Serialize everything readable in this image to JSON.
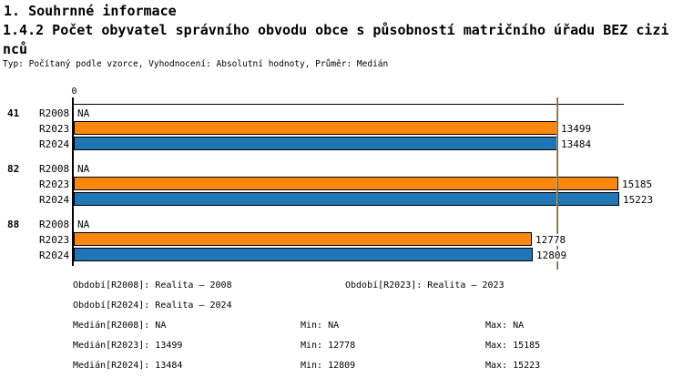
{
  "header": {
    "title": "1. Souhrnné informace",
    "subtitle": "1.4.2 Počet obyvatel správního obvodu obce s působností matričního úřadu BEZ cizinců",
    "meta": "Typ: Počítaný podle vzorce, Vyhodnocení: Absolutní hodnoty, Průměr: Medián"
  },
  "chart_data": {
    "type": "bar",
    "orientation": "horizontal",
    "title": "1.4.2 Počet obyvatel správního obvodu obce s působností matričního úřadu BEZ cizinců",
    "x_origin_label": "0",
    "value_range": [
      0,
      15223
    ],
    "grid": false,
    "na_label": "NA",
    "categories": [
      "41",
      "82",
      "88"
    ],
    "series": [
      {
        "name": "R2008",
        "color": null,
        "values": [
          null,
          null,
          null
        ]
      },
      {
        "name": "R2023",
        "color": "#FC870E",
        "values": [
          13499,
          15185,
          12778
        ]
      },
      {
        "name": "R2024",
        "color": "#1F76B4",
        "values": [
          13484,
          15223,
          12809
        ]
      }
    ],
    "median_lines": [
      {
        "series": "R2023",
        "value": 13499,
        "color": "#FC870E"
      },
      {
        "series": "R2024",
        "value": 13484,
        "color": "#1F76B4"
      }
    ]
  },
  "legend": {
    "items": [
      "Období[R2008]: Realita – 2008",
      "Období[R2023]: Realita – 2023",
      "Období[R2024]: Realita – 2024"
    ]
  },
  "stats": {
    "median": [
      "Medián[R2008]: NA",
      "Medián[R2023]: 13499",
      "Medián[R2024]: 13484"
    ],
    "min": [
      "Min: NA",
      "Min: 12778",
      "Min: 12809"
    ],
    "max": [
      "Max: NA",
      "Max: 15185",
      "Max: 15223"
    ]
  },
  "colors": {
    "axis": "#000000",
    "background": "#ffffff",
    "orange_series": "#FC870E",
    "blue_series": "#1F76B4"
  }
}
